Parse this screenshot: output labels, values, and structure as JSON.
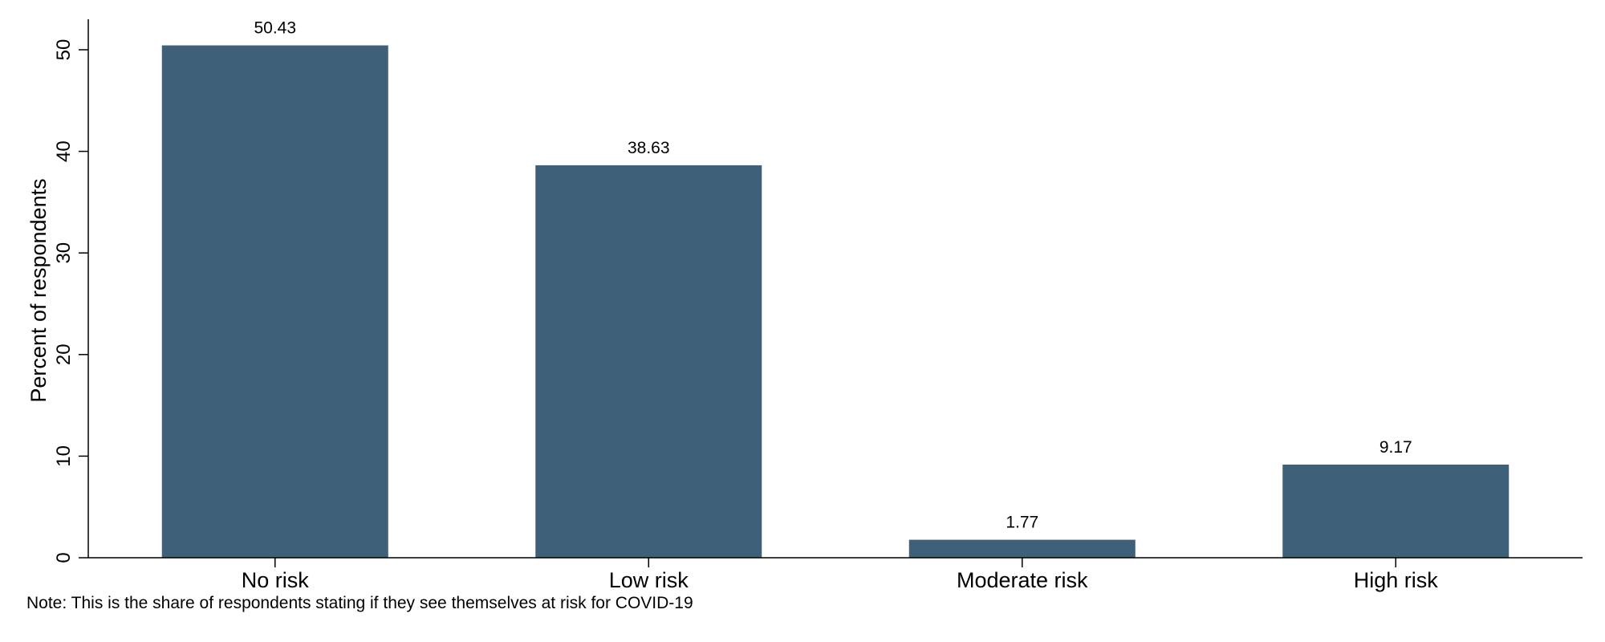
{
  "chart_data": {
    "type": "bar",
    "categories": [
      "No risk",
      "Low risk",
      "Moderate risk",
      "High risk"
    ],
    "values": [
      50.43,
      38.63,
      1.77,
      9.17
    ],
    "value_labels": [
      "50.43",
      "38.63",
      "1.77",
      "9.17"
    ],
    "title": "",
    "xlabel": "",
    "ylabel": "Percent of respondents",
    "ylim": [
      0,
      53
    ],
    "yticks": [
      0,
      10,
      20,
      30,
      40,
      50
    ],
    "grid": false,
    "bar_color": "#3f6079"
  },
  "note": "Note: This is the share of respondents stating if they see themselves at risk for COVID-19"
}
